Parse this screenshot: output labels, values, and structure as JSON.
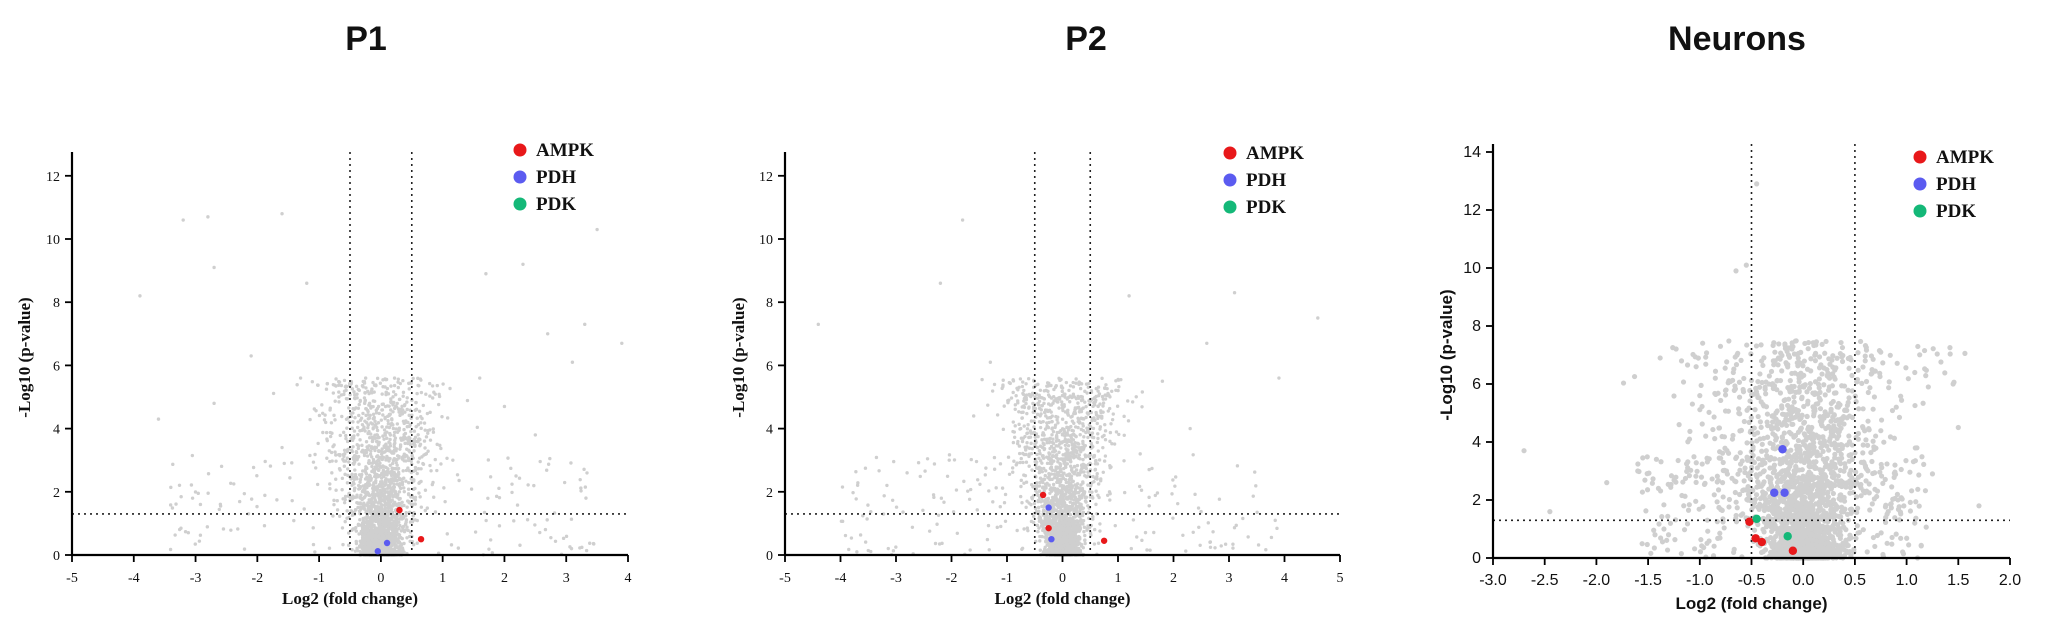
{
  "chart_data": [
    {
      "type": "scatter",
      "title": "P1",
      "xlabel": "Log2 (fold change)",
      "ylabel": "-Log10 (p-value)",
      "xlim": [
        -5,
        4
      ],
      "ylim": [
        0,
        12.5
      ],
      "xticks": [
        -5,
        -4,
        -3,
        -2,
        -1,
        0,
        1,
        2,
        3,
        4
      ],
      "yticks": [
        0,
        2,
        4,
        6,
        8,
        10,
        12
      ],
      "thresholds": {
        "x": [
          -0.5,
          0.5
        ],
        "y": 1.3
      },
      "background_color": "#cfcfcf",
      "series": [
        {
          "name": "AMPK",
          "color": "#e8181a",
          "points": [
            [
              0.3,
              1.42
            ],
            [
              0.65,
              0.5
            ]
          ]
        },
        {
          "name": "PDH",
          "color": "#5b5bf0",
          "points": [
            [
              0.1,
              0.38
            ],
            [
              -0.05,
              0.12
            ]
          ]
        },
        {
          "name": "PDK",
          "color": "#14b878",
          "points": []
        }
      ],
      "outliers": [
        [
          -3.2,
          10.6
        ],
        [
          -2.8,
          10.7
        ],
        [
          -1.6,
          10.8
        ],
        [
          -2.7,
          9.1
        ],
        [
          -1.2,
          8.6
        ],
        [
          -3.9,
          8.2
        ],
        [
          -2.1,
          6.3
        ],
        [
          -2.7,
          4.8
        ],
        [
          -3.6,
          4.3
        ],
        [
          -1.3,
          5.6
        ],
        [
          2.3,
          9.2
        ],
        [
          3.5,
          10.3
        ],
        [
          2.7,
          7.0
        ],
        [
          3.1,
          6.1
        ],
        [
          1.6,
          5.6
        ],
        [
          2.0,
          4.7
        ],
        [
          3.3,
          7.3
        ],
        [
          3.9,
          6.7
        ],
        [
          1.7,
          8.9
        ],
        [
          -1.6,
          3.4
        ],
        [
          2.5,
          3.8
        ]
      ]
    },
    {
      "type": "scatter",
      "title": "P2",
      "xlabel": "Log2 (fold change)",
      "ylabel": "-Log10 (p-value)",
      "xlim": [
        -5,
        5
      ],
      "ylim": [
        0,
        12.5
      ],
      "xticks": [
        -5,
        -4,
        -3,
        -2,
        -1,
        0,
        1,
        2,
        3,
        4,
        5
      ],
      "yticks": [
        0,
        2,
        4,
        6,
        8,
        10,
        12
      ],
      "thresholds": {
        "x": [
          -0.5,
          0.5
        ],
        "y": 1.3
      },
      "background_color": "#cfcfcf",
      "series": [
        {
          "name": "AMPK",
          "color": "#e8181a",
          "points": [
            [
              -0.35,
              1.9
            ],
            [
              -0.25,
              0.85
            ],
            [
              0.75,
              0.45
            ]
          ]
        },
        {
          "name": "PDH",
          "color": "#5b5bf0",
          "points": [
            [
              -0.25,
              1.5
            ],
            [
              -0.2,
              0.5
            ]
          ]
        },
        {
          "name": "PDK",
          "color": "#14b878",
          "points": []
        }
      ],
      "outliers": [
        [
          -4.4,
          7.3
        ],
        [
          -2.2,
          8.6
        ],
        [
          -1.6,
          4.4
        ],
        [
          -2.8,
          2.6
        ],
        [
          -1.3,
          6.1
        ],
        [
          1.2,
          8.2
        ],
        [
          2.6,
          6.7
        ],
        [
          3.1,
          8.3
        ],
        [
          1.8,
          5.5
        ],
        [
          3.9,
          5.6
        ],
        [
          4.6,
          7.5
        ],
        [
          2.3,
          4.0
        ],
        [
          1.4,
          3.2
        ],
        [
          -1.8,
          10.6
        ]
      ]
    },
    {
      "type": "scatter",
      "title": "Neurons",
      "xlabel": "Log2 (fold change)",
      "ylabel": "-Log10 (p-value)",
      "xlim": [
        -3.0,
        2.0
      ],
      "ylim": [
        0,
        14
      ],
      "xticks": [
        -3.0,
        -2.5,
        -2.0,
        -1.5,
        -1.0,
        -0.5,
        0.0,
        0.5,
        1.0,
        1.5,
        2.0
      ],
      "yticks": [
        0,
        2,
        4,
        6,
        8,
        10,
        12,
        14
      ],
      "thresholds": {
        "x": [
          -0.5,
          0.5
        ],
        "y": 1.3
      },
      "background_color": "#cfcfcf",
      "series": [
        {
          "name": "AMPK",
          "color": "#e8181a",
          "points": [
            [
              -0.52,
              1.25
            ],
            [
              -0.46,
              0.68
            ],
            [
              -0.4,
              0.55
            ],
            [
              -0.1,
              0.25
            ]
          ]
        },
        {
          "name": "PDH",
          "color": "#5b5bf0",
          "points": [
            [
              -0.28,
              2.25
            ],
            [
              -0.2,
              3.75
            ],
            [
              -0.18,
              2.25
            ]
          ]
        },
        {
          "name": "PDK",
          "color": "#14b878",
          "points": [
            [
              -0.45,
              1.35
            ],
            [
              -0.15,
              0.75
            ]
          ]
        }
      ],
      "outliers": [
        [
          -2.7,
          3.7
        ],
        [
          -2.45,
          1.6
        ],
        [
          -1.6,
          3.0
        ],
        [
          -1.2,
          4.6
        ],
        [
          -1.0,
          5.6
        ],
        [
          -0.8,
          7.3
        ],
        [
          -0.65,
          9.9
        ],
        [
          -0.55,
          10.1
        ],
        [
          -0.45,
          12.9
        ],
        [
          -1.1,
          4.1
        ],
        [
          -1.9,
          2.6
        ],
        [
          -1.4,
          2.4
        ],
        [
          1.45,
          6.0
        ],
        [
          1.5,
          4.5
        ],
        [
          1.1,
          3.8
        ],
        [
          1.7,
          1.8
        ],
        [
          0.75,
          7.1
        ],
        [
          0.9,
          5.2
        ],
        [
          1.25,
          2.9
        ],
        [
          0.6,
          6.8
        ],
        [
          -0.85,
          6.2
        ]
      ]
    }
  ]
}
